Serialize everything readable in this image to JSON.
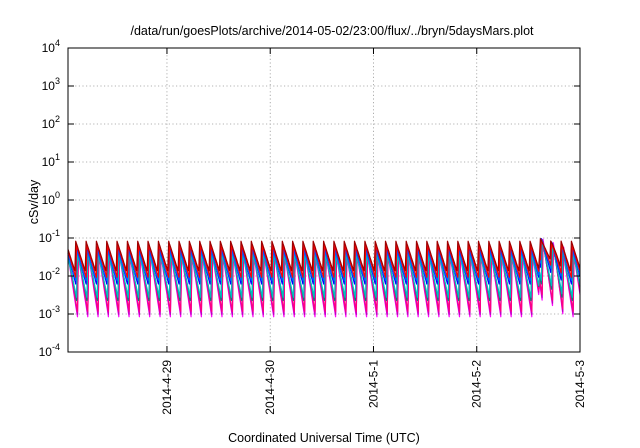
{
  "chart_data": {
    "type": "line",
    "title": "/data/run/goesPlots/archive/2014-05-02/23:00/flux/../bryn/5daysMars.plot",
    "xlabel": "Coordinated Universal Time (UTC)",
    "ylabel": "cSv/day",
    "yscale": "log",
    "ylim": [
      0.0001,
      10000
    ],
    "xlim": [
      "2014-04-28 01:00",
      "2014-05-03 00:00"
    ],
    "grid": true,
    "x_ticks": [
      "2014-4-29",
      "2014-4-30",
      "2014-5-1",
      "2014-5-2",
      "2014-5-3"
    ],
    "y_ticks": [
      {
        "base": "10",
        "exp": "-4"
      },
      {
        "base": "10",
        "exp": "-3"
      },
      {
        "base": "10",
        "exp": "-2"
      },
      {
        "base": "10",
        "exp": "-1"
      },
      {
        "base": "10",
        "exp": "0"
      },
      {
        "base": "10",
        "exp": "1"
      },
      {
        "base": "10",
        "exp": "2"
      },
      {
        "base": "10",
        "exp": "3"
      },
      {
        "base": "10",
        "exp": "4"
      }
    ],
    "pattern": {
      "period_hours": 2.4,
      "event": {
        "start": "2014-05-02 14:30",
        "peak": 0.1
      }
    },
    "series": [
      {
        "color": "#ff00ff",
        "peak": 0.035,
        "trough": 0.0006
      },
      {
        "color": "#c000c0",
        "peak": 0.045,
        "trough": 0.0008
      },
      {
        "color": "#ff0080",
        "peak": 0.05,
        "trough": 0.0011
      },
      {
        "color": "#008080",
        "peak": 0.055,
        "trough": 0.0018
      },
      {
        "color": "#00c0c0",
        "peak": 0.045,
        "trough": 0.0025
      },
      {
        "color": "#0000ff",
        "peak": 0.06,
        "trough": 0.005
      },
      {
        "color": "#0060ff",
        "peak": 0.05,
        "trough": 0.007
      },
      {
        "color": "#ff0000",
        "peak": 0.075,
        "trough": 0.009
      },
      {
        "color": "#a00000",
        "peak": 0.085,
        "trough": 0.012
      }
    ]
  }
}
